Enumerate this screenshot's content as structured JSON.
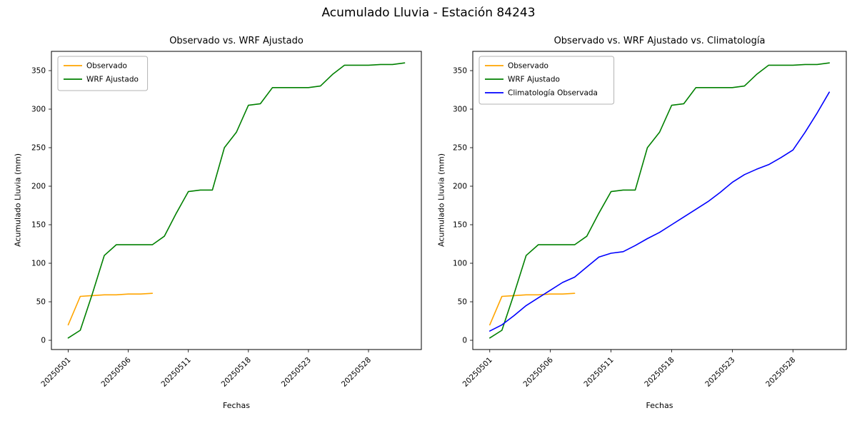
{
  "figure": {
    "title": "Acumulado Lluvia - Estación 84243",
    "background": "#ffffff"
  },
  "chart_data": [
    {
      "type": "line",
      "title": "Observado vs. WRF Ajustado",
      "xlabel": "Fechas",
      "ylabel": "Acumulado Lluvia (mm)",
      "ylim": [
        -12,
        375
      ],
      "yticks": [
        0,
        50,
        100,
        150,
        200,
        250,
        300,
        350
      ],
      "grid": false,
      "legend_position": "upper-left",
      "categories": [
        "20250501",
        "20250502",
        "20250503",
        "20250504",
        "20250505",
        "20250506",
        "20250507",
        "20250508",
        "20250509",
        "20250510",
        "20250511",
        "20250514",
        "20250515",
        "20250516",
        "20250517",
        "20250518",
        "20250519",
        "20250520",
        "20250521",
        "20250522",
        "20250523",
        "20250524",
        "20250525",
        "20250526",
        "20250527",
        "20250528",
        "20250529",
        "20250530",
        "20250531"
      ],
      "xtick_indices": [
        0,
        5,
        10,
        15,
        20,
        25
      ],
      "series": [
        {
          "name": "Observado",
          "color": "#ffa500",
          "values": [
            20,
            57,
            58,
            59,
            59,
            60,
            60,
            61
          ]
        },
        {
          "name": "WRF Ajustado",
          "color": "#008000",
          "values": [
            3,
            13,
            60,
            110,
            124,
            124,
            124,
            124,
            135,
            165,
            193,
            195,
            195,
            250,
            270,
            305,
            307,
            328,
            328,
            328,
            328,
            330,
            345,
            357,
            357,
            357,
            358,
            358,
            360
          ]
        }
      ]
    },
    {
      "type": "line",
      "title": "Observado vs. WRF Ajustado vs. Climatología",
      "xlabel": "Fechas",
      "ylabel": "Acumulado Lluvia (mm)",
      "ylim": [
        -12,
        375
      ],
      "yticks": [
        0,
        50,
        100,
        150,
        200,
        250,
        300,
        350
      ],
      "grid": false,
      "legend_position": "upper-left",
      "categories": [
        "20250501",
        "20250502",
        "20250503",
        "20250504",
        "20250505",
        "20250506",
        "20250507",
        "20250508",
        "20250509",
        "20250510",
        "20250511",
        "20250514",
        "20250515",
        "20250516",
        "20250517",
        "20250518",
        "20250519",
        "20250520",
        "20250521",
        "20250522",
        "20250523",
        "20250524",
        "20250525",
        "20250526",
        "20250527",
        "20250528",
        "20250529",
        "20250530",
        "20250531"
      ],
      "xtick_indices": [
        0,
        5,
        10,
        15,
        20,
        25
      ],
      "series": [
        {
          "name": "Observado",
          "color": "#ffa500",
          "values": [
            20,
            57,
            58,
            59,
            59,
            60,
            60,
            61
          ]
        },
        {
          "name": "WRF Ajustado",
          "color": "#008000",
          "values": [
            3,
            13,
            60,
            110,
            124,
            124,
            124,
            124,
            135,
            165,
            193,
            195,
            195,
            250,
            270,
            305,
            307,
            328,
            328,
            328,
            328,
            330,
            345,
            357,
            357,
            357,
            358,
            358,
            360
          ]
        },
        {
          "name": "Climatología Observada",
          "color": "#0000ff",
          "values": [
            12,
            20,
            32,
            45,
            55,
            65,
            75,
            82,
            95,
            108,
            113,
            115,
            123,
            132,
            140,
            150,
            160,
            170,
            180,
            192,
            205,
            215,
            222,
            228,
            237,
            247,
            270,
            295,
            322
          ]
        }
      ]
    }
  ]
}
